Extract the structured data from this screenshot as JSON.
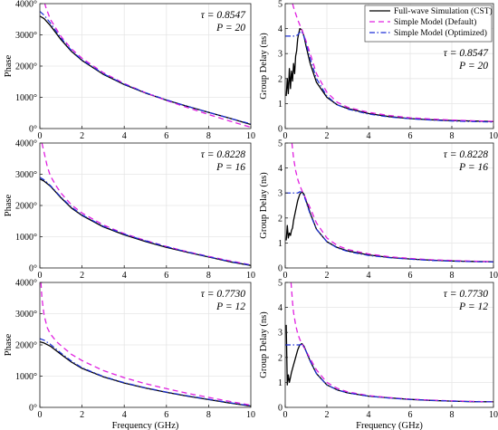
{
  "colors": {
    "full_wave": "#000000",
    "simple_default": "#e020e0",
    "simple_optimized": "#1c2fd8",
    "axis": "#222222",
    "grid": "#e6e6e6"
  },
  "legend": {
    "items": [
      {
        "label": "Full-wave Simulation (CST)",
        "style": "solid",
        "color": "#000000"
      },
      {
        "label": "Simple Model (Default)",
        "style": "dashed",
        "color": "#e020e0"
      },
      {
        "label": "Simple Model (Optimized)",
        "style": "dashdot",
        "color": "#1c2fd8"
      }
    ],
    "placement": "top-right of upper-right panel"
  },
  "chart_data": [
    {
      "type": "line",
      "panel": "row1-phase",
      "xlabel": "",
      "ylabel": "Phase",
      "xlim": [
        0,
        10
      ],
      "ylim": [
        0,
        4000
      ],
      "xticks": [
        "0",
        "2",
        "4",
        "6",
        "8",
        "10"
      ],
      "yticks": [
        "0°",
        "1000°",
        "2000°",
        "3000°",
        "4000°"
      ],
      "annotation": [
        "τ = 0.8547",
        "P = 20"
      ],
      "grid": true,
      "series": [
        {
          "name": "Full-wave Simulation (CST)",
          "x": [
            0,
            0.2,
            0.5,
            1,
            1.5,
            2,
            3,
            4,
            5,
            6,
            7,
            8,
            9,
            10
          ],
          "y": [
            3600,
            3520,
            3300,
            2850,
            2470,
            2180,
            1740,
            1410,
            1140,
            910,
            710,
            520,
            330,
            130
          ]
        },
        {
          "name": "Simple Model (Default)",
          "x": [
            0.1,
            0.3,
            0.5,
            1,
            1.5,
            2,
            3,
            4,
            5,
            6,
            7,
            8,
            9,
            10
          ],
          "y": [
            4300,
            3850,
            3500,
            2950,
            2550,
            2250,
            1790,
            1440,
            1150,
            900,
            670,
            450,
            240,
            40
          ]
        },
        {
          "name": "Simple Model (Optimized)",
          "x": [
            0,
            0.2,
            0.5,
            1,
            1.5,
            2,
            3,
            4,
            5,
            6,
            7,
            8,
            9,
            10
          ],
          "y": [
            3750,
            3630,
            3380,
            2900,
            2500,
            2200,
            1760,
            1420,
            1150,
            920,
            710,
            520,
            330,
            150
          ]
        }
      ]
    },
    {
      "type": "line",
      "panel": "row1-delay",
      "xlabel": "",
      "ylabel": "Group Delay (ns)",
      "xlim": [
        0,
        10
      ],
      "ylim": [
        0,
        5
      ],
      "xticks": [
        "0",
        "2",
        "4",
        "6",
        "8",
        "10"
      ],
      "yticks": [
        "0",
        "1",
        "2",
        "3",
        "4",
        "5"
      ],
      "annotation": [
        "τ = 0.8547",
        "P = 20"
      ],
      "grid": true,
      "series": [
        {
          "name": "Full-wave Simulation (CST)",
          "x": [
            0.05,
            0.1,
            0.15,
            0.2,
            0.25,
            0.3,
            0.35,
            0.4,
            0.45,
            0.5,
            0.55,
            0.6,
            0.65,
            0.7,
            0.8,
            0.9,
            1.0,
            1.2,
            1.5,
            2,
            2.5,
            3,
            4,
            5,
            6,
            7,
            8,
            9,
            10
          ],
          "y": [
            1.3,
            2.0,
            1.4,
            2.4,
            1.6,
            2.3,
            1.9,
            2.6,
            2.2,
            2.9,
            3.1,
            3.6,
            3.8,
            4.0,
            3.95,
            3.7,
            3.3,
            2.6,
            1.85,
            1.25,
            0.95,
            0.8,
            0.6,
            0.48,
            0.4,
            0.35,
            0.32,
            0.3,
            0.28
          ]
        },
        {
          "name": "Simple Model (Default)",
          "x": [
            0.35,
            0.4,
            0.5,
            0.6,
            0.7,
            0.8,
            1.0,
            1.2,
            1.5,
            2,
            2.5,
            3,
            4,
            5,
            6,
            7,
            8,
            9,
            10
          ],
          "y": [
            5.0,
            4.85,
            4.6,
            4.35,
            4.15,
            3.95,
            3.5,
            3.0,
            2.2,
            1.45,
            1.05,
            0.85,
            0.65,
            0.52,
            0.43,
            0.38,
            0.34,
            0.31,
            0.29
          ]
        },
        {
          "name": "Simple Model (Optimized)",
          "x": [
            0,
            0.5,
            0.6,
            0.75,
            0.85,
            1.0,
            1.2,
            1.5,
            2,
            2.5,
            3,
            4,
            5,
            6,
            7,
            8,
            9,
            10
          ],
          "y": [
            3.7,
            3.7,
            3.75,
            3.9,
            3.8,
            3.4,
            2.8,
            2.0,
            1.3,
            0.95,
            0.78,
            0.58,
            0.46,
            0.39,
            0.34,
            0.3,
            0.28,
            0.26
          ]
        }
      ]
    },
    {
      "type": "line",
      "panel": "row2-phase",
      "xlabel": "",
      "ylabel": "Phase",
      "xlim": [
        0,
        10
      ],
      "ylim": [
        0,
        4000
      ],
      "xticks": [
        "0",
        "2",
        "4",
        "6",
        "8",
        "10"
      ],
      "yticks": [
        "0°",
        "1000°",
        "2000°",
        "3000°",
        "4000°"
      ],
      "annotation": [
        "τ = 0.8228",
        "P = 16"
      ],
      "grid": true,
      "series": [
        {
          "name": "Full-wave Simulation (CST)",
          "x": [
            0,
            0.2,
            0.5,
            1,
            1.5,
            2,
            3,
            4,
            5,
            6,
            7,
            8,
            9,
            10
          ],
          "y": [
            2850,
            2780,
            2620,
            2250,
            1920,
            1680,
            1320,
            1060,
            850,
            660,
            500,
            350,
            200,
            80
          ]
        },
        {
          "name": "Simple Model (Default)",
          "x": [
            0.1,
            0.2,
            0.35,
            0.5,
            0.8,
            1,
            1.5,
            2,
            3,
            4,
            5,
            6,
            7,
            8,
            9,
            10
          ],
          "y": [
            4000,
            3700,
            3250,
            2950,
            2600,
            2400,
            2020,
            1760,
            1380,
            1100,
            880,
            690,
            520,
            370,
            230,
            100
          ]
        },
        {
          "name": "Simple Model (Optimized)",
          "x": [
            0,
            0.2,
            0.5,
            1,
            1.5,
            2,
            3,
            4,
            5,
            6,
            7,
            8,
            9,
            10
          ],
          "y": [
            2900,
            2820,
            2640,
            2270,
            1950,
            1700,
            1340,
            1080,
            870,
            680,
            510,
            360,
            210,
            90
          ]
        }
      ]
    },
    {
      "type": "line",
      "panel": "row2-delay",
      "xlabel": "",
      "ylabel": "Group Delay (ns)",
      "xlim": [
        0,
        10
      ],
      "ylim": [
        0,
        5
      ],
      "xticks": [
        "0",
        "2",
        "4",
        "6",
        "8",
        "10"
      ],
      "yticks": [
        "0",
        "1",
        "2",
        "3",
        "4",
        "5"
      ],
      "annotation": [
        "τ = 0.8228",
        "P = 16"
      ],
      "grid": true,
      "series": [
        {
          "name": "Full-wave Simulation (CST)",
          "x": [
            0.05,
            0.1,
            0.15,
            0.2,
            0.25,
            0.3,
            0.35,
            0.4,
            0.5,
            0.6,
            0.7,
            0.8,
            0.9,
            1.0,
            1.2,
            1.5,
            2,
            2.5,
            3,
            4,
            5,
            6,
            7,
            8,
            9,
            10
          ],
          "y": [
            1.1,
            1.7,
            1.2,
            1.4,
            1.3,
            1.5,
            1.6,
            1.9,
            2.3,
            2.7,
            2.95,
            3.05,
            2.95,
            2.7,
            2.2,
            1.55,
            1.05,
            0.82,
            0.68,
            0.52,
            0.42,
            0.36,
            0.31,
            0.28,
            0.26,
            0.25
          ]
        },
        {
          "name": "Simple Model (Default)",
          "x": [
            0.32,
            0.4,
            0.5,
            0.6,
            0.7,
            0.8,
            1.0,
            1.2,
            1.5,
            2,
            2.5,
            3,
            4,
            5,
            6,
            7,
            8,
            9,
            10
          ],
          "y": [
            5.0,
            4.4,
            3.9,
            3.55,
            3.3,
            3.1,
            2.75,
            2.4,
            1.8,
            1.2,
            0.9,
            0.74,
            0.56,
            0.45,
            0.38,
            0.33,
            0.3,
            0.27,
            0.25
          ]
        },
        {
          "name": "Simple Model (Optimized)",
          "x": [
            0,
            0.6,
            0.7,
            0.8,
            0.9,
            1.0,
            1.2,
            1.5,
            2,
            2.5,
            3,
            4,
            5,
            6,
            7,
            8,
            9,
            10
          ],
          "y": [
            3.0,
            3.0,
            3.05,
            3.02,
            2.9,
            2.65,
            2.15,
            1.55,
            1.05,
            0.8,
            0.66,
            0.5,
            0.41,
            0.35,
            0.3,
            0.27,
            0.25,
            0.24
          ]
        }
      ]
    },
    {
      "type": "line",
      "panel": "row3-phase",
      "xlabel": "Frequency (GHz)",
      "ylabel": "Phase",
      "xlim": [
        0,
        10
      ],
      "ylim": [
        0,
        4000
      ],
      "xticks": [
        "0",
        "2",
        "4",
        "6",
        "8",
        "10"
      ],
      "yticks": [
        "0°",
        "1000°",
        "2000°",
        "3000°",
        "4000°"
      ],
      "annotation": [
        "τ = 0.7730",
        "P = 12"
      ],
      "grid": true,
      "series": [
        {
          "name": "Full-wave Simulation (CST)",
          "x": [
            0,
            0.2,
            0.5,
            1,
            1.5,
            2,
            3,
            4,
            5,
            6,
            7,
            8,
            9,
            10
          ],
          "y": [
            2100,
            2060,
            1960,
            1700,
            1450,
            1250,
            980,
            780,
            620,
            480,
            360,
            250,
            140,
            40
          ]
        },
        {
          "name": "Simple Model (Default)",
          "x": [
            0.05,
            0.1,
            0.2,
            0.35,
            0.5,
            0.8,
            1,
            1.5,
            2,
            3,
            4,
            5,
            6,
            7,
            8,
            9,
            10
          ],
          "y": [
            4000,
            3500,
            2950,
            2550,
            2350,
            2100,
            1980,
            1700,
            1500,
            1180,
            950,
            760,
            600,
            450,
            320,
            190,
            70
          ]
        },
        {
          "name": "Simple Model (Optimized)",
          "x": [
            0,
            0.2,
            0.5,
            1,
            1.5,
            2,
            3,
            4,
            5,
            6,
            7,
            8,
            9,
            10
          ],
          "y": [
            2200,
            2150,
            2020,
            1740,
            1480,
            1270,
            990,
            790,
            630,
            490,
            370,
            260,
            150,
            50
          ]
        }
      ]
    },
    {
      "type": "line",
      "panel": "row3-delay",
      "xlabel": "Frequency (GHz)",
      "ylabel": "Group Delay (ns)",
      "xlim": [
        0,
        10
      ],
      "ylim": [
        0,
        5
      ],
      "xticks": [
        "0",
        "2",
        "4",
        "6",
        "8",
        "10"
      ],
      "yticks": [
        "0",
        "1",
        "2",
        "3",
        "4",
        "5"
      ],
      "annotation": [
        "τ = 0.7730",
        "P = 12"
      ],
      "grid": true,
      "series": [
        {
          "name": "Full-wave Simulation (CST)",
          "x": [
            0.05,
            0.1,
            0.15,
            0.2,
            0.25,
            0.3,
            0.4,
            0.5,
            0.6,
            0.7,
            0.8,
            0.9,
            1.0,
            1.2,
            1.5,
            2,
            2.5,
            3,
            4,
            5,
            6,
            7,
            8,
            9,
            10
          ],
          "y": [
            3.3,
            0.9,
            1.3,
            1.0,
            1.2,
            1.4,
            1.7,
            2.0,
            2.3,
            2.5,
            2.55,
            2.45,
            2.25,
            1.85,
            1.35,
            0.9,
            0.7,
            0.58,
            0.45,
            0.38,
            0.32,
            0.28,
            0.25,
            0.23,
            0.22
          ]
        },
        {
          "name": "Simple Model (Default)",
          "x": [
            0.28,
            0.35,
            0.4,
            0.5,
            0.6,
            0.7,
            0.8,
            1.0,
            1.2,
            1.5,
            2,
            2.5,
            3,
            4,
            5,
            6,
            7,
            8,
            9,
            10
          ],
          "y": [
            5.0,
            4.2,
            3.8,
            3.3,
            2.95,
            2.72,
            2.55,
            2.25,
            1.95,
            1.5,
            1.0,
            0.76,
            0.62,
            0.47,
            0.39,
            0.33,
            0.29,
            0.26,
            0.24,
            0.22
          ]
        },
        {
          "name": "Simple Model (Optimized)",
          "x": [
            0,
            0.7,
            0.8,
            0.9,
            1.0,
            1.2,
            1.5,
            2,
            2.5,
            3,
            4,
            5,
            6,
            7,
            8,
            9,
            10
          ],
          "y": [
            2.5,
            2.5,
            2.52,
            2.42,
            2.25,
            1.85,
            1.35,
            0.9,
            0.7,
            0.58,
            0.45,
            0.37,
            0.32,
            0.28,
            0.25,
            0.23,
            0.22
          ]
        }
      ]
    }
  ]
}
